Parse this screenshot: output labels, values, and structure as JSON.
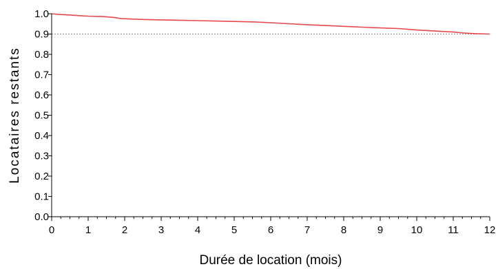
{
  "chart_data": {
    "type": "line",
    "title": "",
    "xlabel": "Durée de location (mois)",
    "ylabel": "Locataires restants",
    "xlim": [
      0,
      12
    ],
    "ylim": [
      0.0,
      1.0
    ],
    "x_ticks": [
      "0",
      "1",
      "2",
      "3",
      "4",
      "5",
      "6",
      "7",
      "8",
      "9",
      "10",
      "11",
      "12"
    ],
    "y_ticks": [
      "0.0",
      "0.1",
      "0.2",
      "0.3",
      "0.4",
      "0.5",
      "0.6",
      "0.7",
      "0.8",
      "0.9",
      "1.0"
    ],
    "reference_line": {
      "y": 0.9,
      "style": "dotted",
      "color": "#888888"
    },
    "grid": false,
    "legend": "none",
    "series": [
      {
        "color": "#e8474c",
        "x": [
          0,
          0.2,
          0.5,
          0.8,
          1.0,
          1.4,
          1.7,
          1.9,
          2.2,
          2.5,
          3.0,
          3.5,
          4.0,
          4.5,
          5.0,
          5.5,
          6.0,
          6.5,
          7.0,
          7.5,
          8.0,
          8.5,
          9.0,
          9.5,
          10.0,
          10.5,
          11.0,
          11.3,
          11.6,
          12.0
        ],
        "y": [
          1.0,
          0.997,
          0.994,
          0.99,
          0.988,
          0.986,
          0.982,
          0.976,
          0.974,
          0.972,
          0.97,
          0.968,
          0.966,
          0.964,
          0.962,
          0.96,
          0.956,
          0.951,
          0.946,
          0.942,
          0.938,
          0.934,
          0.93,
          0.927,
          0.92,
          0.915,
          0.91,
          0.905,
          0.902,
          0.9
        ]
      }
    ]
  }
}
